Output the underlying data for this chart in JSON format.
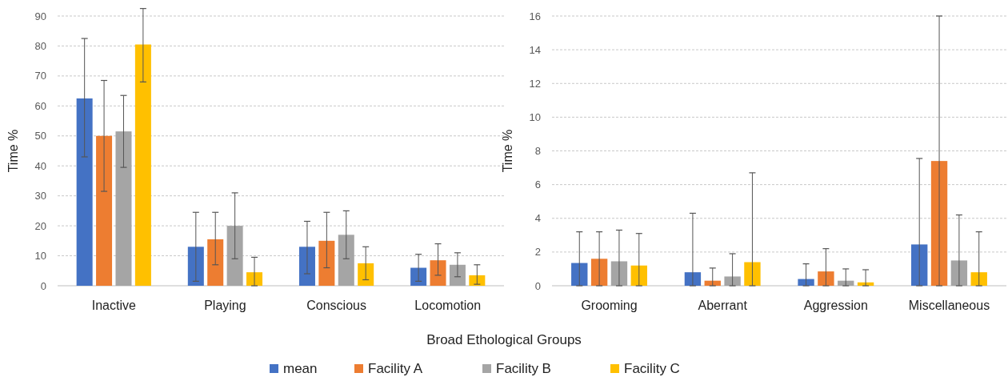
{
  "chart_data": [
    {
      "type": "bar",
      "ylabel": "Time %",
      "xlabel": "Broad Ethological Groups",
      "categories": [
        "Inactive",
        "Playing",
        "Conscious",
        "Locomotion"
      ],
      "ylim": [
        0,
        90
      ],
      "yticks": [
        0,
        10,
        20,
        30,
        40,
        50,
        60,
        70,
        80,
        90
      ],
      "grid": "y",
      "legend": "bottom",
      "series": [
        {
          "name": "mean",
          "color": "#4472c4",
          "values": [
            62.5,
            13,
            13,
            6
          ],
          "errors": [
            [
              43,
              82.5
            ],
            [
              1.5,
              24.5
            ],
            [
              4,
              21.5
            ],
            [
              1.5,
              10.5
            ]
          ]
        },
        {
          "name": "Facility A",
          "color": "#ed7d31",
          "values": [
            50,
            15.5,
            15,
            8.5
          ],
          "errors": [
            [
              31.5,
              68.5
            ],
            [
              7,
              24.5
            ],
            [
              6,
              24.5
            ],
            [
              3.5,
              14
            ]
          ]
        },
        {
          "name": "Facility B",
          "color": "#a5a5a5",
          "values": [
            51.5,
            20,
            17,
            7
          ],
          "errors": [
            [
              39.5,
              63.5
            ],
            [
              9,
              31
            ],
            [
              9,
              25
            ],
            [
              3,
              11
            ]
          ]
        },
        {
          "name": "Facility C",
          "color": "#ffc000",
          "values": [
            80.5,
            4.5,
            7.5,
            3.5
          ],
          "errors": [
            [
              68,
              92.5
            ],
            [
              0,
              9.5
            ],
            [
              2,
              13
            ],
            [
              0.5,
              7
            ]
          ]
        }
      ]
    },
    {
      "type": "bar",
      "ylabel": "Time %",
      "categories": [
        "Grooming",
        "Aberrant",
        "Aggression",
        "Miscellaneous"
      ],
      "ylim": [
        0,
        16
      ],
      "yticks": [
        0,
        2,
        4,
        6,
        8,
        10,
        12,
        14,
        16
      ],
      "grid": "y",
      "series": [
        {
          "color": "#4472c4",
          "values": [
            1.35,
            0.8,
            0.4,
            2.45
          ],
          "errors": [
            [
              0,
              3.2
            ],
            [
              0,
              4.3
            ],
            [
              0,
              1.3
            ],
            [
              0,
              7.55
            ]
          ]
        },
        {
          "color": "#ed7d31",
          "values": [
            1.6,
            0.3,
            0.85,
            7.4
          ],
          "errors": [
            [
              0,
              3.2
            ],
            [
              0,
              1.05
            ],
            [
              0,
              2.2
            ],
            [
              0,
              16
            ]
          ]
        },
        {
          "color": "#a5a5a5",
          "values": [
            1.45,
            0.55,
            0.3,
            1.5
          ],
          "errors": [
            [
              0,
              3.3
            ],
            [
              0,
              1.9
            ],
            [
              0,
              1
            ],
            [
              0,
              4.2
            ]
          ]
        },
        {
          "color": "#ffc000",
          "values": [
            1.2,
            1.4,
            0.2,
            0.8
          ],
          "errors": [
            [
              0,
              3.1
            ],
            [
              0,
              6.7
            ],
            [
              0,
              0.95
            ],
            [
              0,
              3.2
            ]
          ]
        }
      ]
    }
  ]
}
